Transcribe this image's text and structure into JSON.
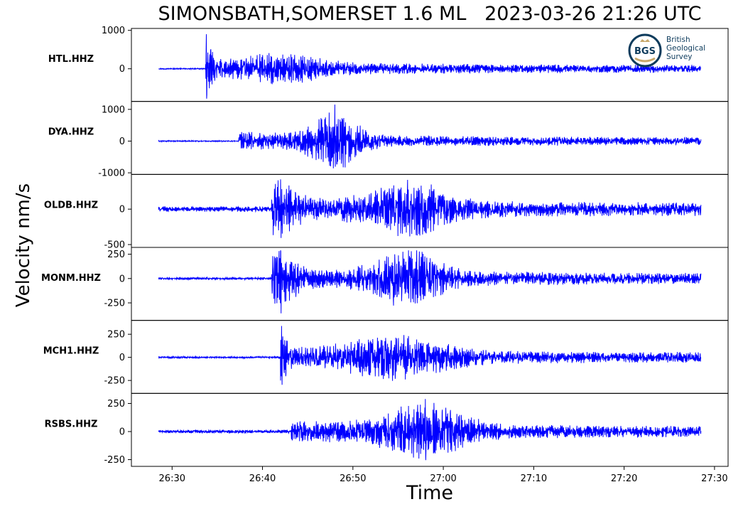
{
  "title": "SIMONSBATH,SOMERSET 1.6 ML   2023-03-26 21:26 UTC",
  "ylabel": "Velocity nm/s",
  "xlabel": "Time",
  "logo": {
    "abbr": "BGS",
    "lines": [
      "British",
      "Geological",
      "Survey"
    ]
  },
  "colors": {
    "trace": "#0000ff",
    "axis": "#000000"
  },
  "chart_data": {
    "type": "line",
    "x_unit": "time (mm:ss after 21:00 UTC)",
    "x_range": [
      "26:25.5",
      "27:31.5"
    ],
    "x_ticks": [
      "26:30",
      "26:40",
      "26:50",
      "27:00",
      "27:10",
      "27:20",
      "27:30"
    ],
    "trace_start": "26:28.5",
    "trace_end": "27:28.5",
    "traces": [
      {
        "station": "HTL.HHZ",
        "ylim": [
          -850,
          1050
        ],
        "yticks": [
          {
            "v": 1000,
            "label": "1000"
          },
          {
            "v": 0,
            "label": "0"
          }
        ],
        "onset": "26:33.7",
        "peak": 900,
        "min": -800,
        "pre_noise": 12,
        "coda_level": 180,
        "bursts": [
          {
            "t": "26:33.8",
            "amp": 850,
            "width": 0.6
          },
          {
            "t": "26:42",
            "amp": 320,
            "width": 5
          }
        ]
      },
      {
        "station": "DYA.HHZ",
        "ylim": [
          -1050,
          1250
        ],
        "yticks": [
          {
            "v": 1000,
            "label": "1000"
          },
          {
            "v": 0,
            "label": "0"
          },
          {
            "v": -1000,
            "label": "-1000"
          }
        ],
        "onset": "26:37.3",
        "peak": 1150,
        "min": -950,
        "pre_noise": 15,
        "coda_level": 220,
        "bursts": [
          {
            "t": "26:48",
            "amp": 1050,
            "width": 3
          }
        ]
      },
      {
        "station": "OLDB.HHZ",
        "ylim": [
          -540,
          490
        ],
        "yticks": [
          {
            "v": 0,
            "label": "0"
          },
          {
            "v": -500,
            "label": "-500"
          }
        ],
        "onset": "26:41.0",
        "peak": 420,
        "min": -480,
        "pre_noise": 30,
        "coda_level": 110,
        "bursts": [
          {
            "t": "26:42",
            "amp": 350,
            "width": 2
          },
          {
            "t": "26:56",
            "amp": 420,
            "width": 5
          }
        ]
      },
      {
        "station": "MONM.HHZ",
        "ylim": [
          -430,
          320
        ],
        "yticks": [
          {
            "v": 250,
            "label": "250"
          },
          {
            "v": 0,
            "label": "0"
          },
          {
            "v": -250,
            "label": "-250"
          }
        ],
        "onset": "26:41.0",
        "peak": 290,
        "min": -420,
        "pre_noise": 10,
        "coda_level": 90,
        "bursts": [
          {
            "t": "26:42",
            "amp": 230,
            "width": 2
          },
          {
            "t": "26:56",
            "amp": 340,
            "width": 4
          }
        ]
      },
      {
        "station": "MCH1.HHZ",
        "ylim": [
          -390,
          400
        ],
        "yticks": [
          {
            "v": 250,
            "label": "250"
          },
          {
            "v": 0,
            "label": "0"
          },
          {
            "v": -250,
            "label": "-250"
          }
        ],
        "onset": "26:42.0",
        "peak": 340,
        "min": -350,
        "pre_noise": 8,
        "coda_level": 90,
        "bursts": [
          {
            "t": "26:42.1",
            "amp": 330,
            "width": 0.6
          },
          {
            "t": "26:55",
            "amp": 240,
            "width": 6
          }
        ]
      },
      {
        "station": "RSBS.HHZ",
        "ylim": [
          -310,
          340
        ],
        "yticks": [
          {
            "v": 250,
            "label": "250"
          },
          {
            "v": 0,
            "label": "0"
          },
          {
            "v": -250,
            "label": "-250"
          }
        ],
        "onset": "26:43.2",
        "peak": 290,
        "min": -300,
        "pre_noise": 12,
        "coda_level": 70,
        "bursts": [
          {
            "t": "26:58",
            "amp": 280,
            "width": 5
          }
        ]
      }
    ]
  }
}
